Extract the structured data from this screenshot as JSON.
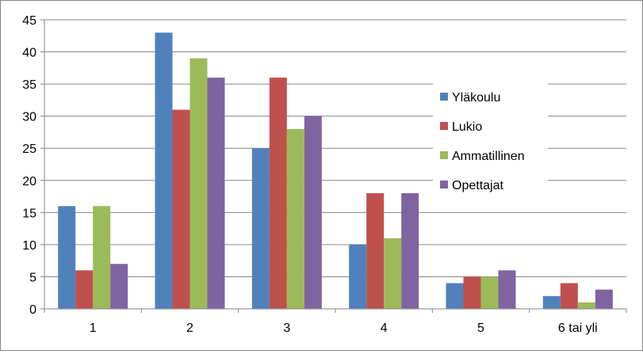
{
  "chart_data": {
    "type": "bar",
    "title": "",
    "xlabel": "",
    "ylabel": "",
    "categories": [
      "1",
      "2",
      "3",
      "4",
      "5",
      "6 tai yli"
    ],
    "ylim": [
      0,
      45
    ],
    "yticks": [
      "0",
      "5",
      "10",
      "15",
      "20",
      "25",
      "30",
      "35",
      "40",
      "45"
    ],
    "grid": true,
    "legend_position": "right",
    "series": [
      {
        "name": "Yläkoulu",
        "color": "#4F81BD",
        "values": [
          16,
          43,
          25,
          10,
          4,
          2
        ]
      },
      {
        "name": "Lukio",
        "color": "#C0504D",
        "values": [
          6,
          31,
          36,
          18,
          5,
          4
        ]
      },
      {
        "name": "Ammatillinen",
        "color": "#9BBB59",
        "values": [
          16,
          39,
          28,
          11,
          5,
          1
        ]
      },
      {
        "name": "Opettajat",
        "color": "#8064A2",
        "values": [
          7,
          36,
          30,
          18,
          6,
          3
        ]
      }
    ]
  }
}
